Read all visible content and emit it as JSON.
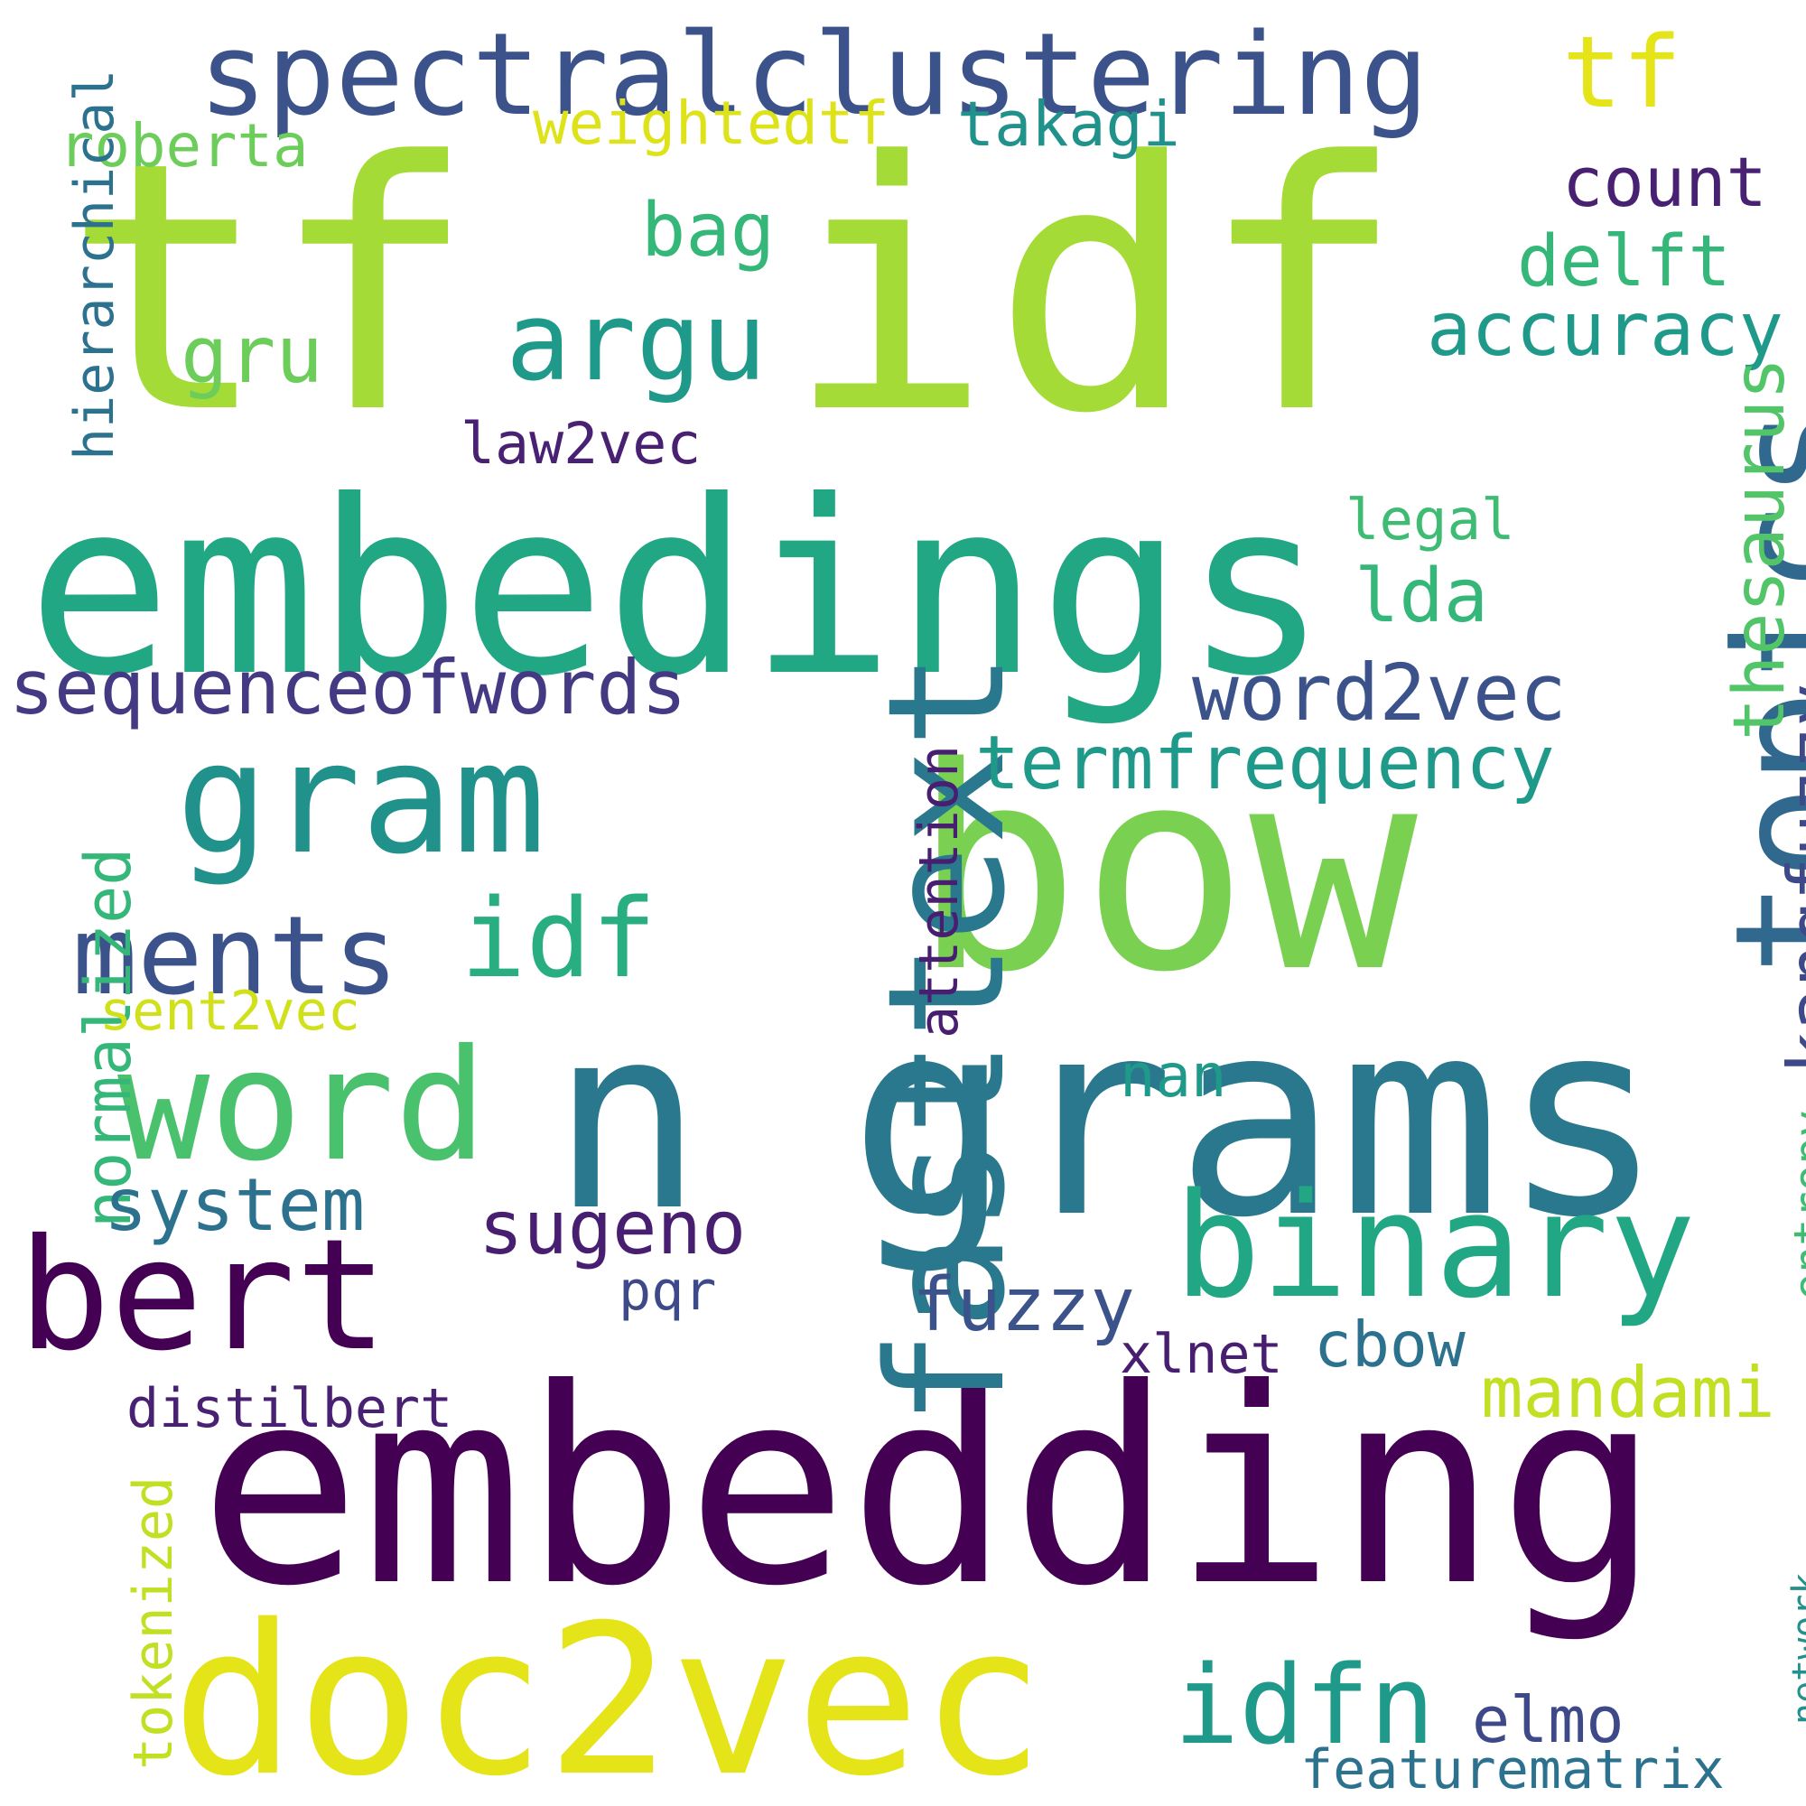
{
  "words": [
    {
      "text": "tf",
      "color": "#a5db36"
    },
    {
      "text": "idf",
      "color": "#a5db36"
    },
    {
      "text": "embedings",
      "color": "#22a785"
    },
    {
      "text": "bow",
      "color": "#7ad151"
    },
    {
      "text": "grams",
      "color": "#2a788e"
    },
    {
      "text": "n",
      "color": "#2a788e"
    },
    {
      "text": "embedding",
      "color": "#440154"
    },
    {
      "text": "doc2vec",
      "color": "#e5e419"
    },
    {
      "text": "gram",
      "color": "#21918c"
    },
    {
      "text": "bert",
      "color": "#440154"
    },
    {
      "text": "fasttext",
      "color": "#2a788e"
    },
    {
      "text": "topics",
      "color": "#31688e"
    },
    {
      "text": "binary",
      "color": "#22a785"
    },
    {
      "text": "word",
      "color": "#4ac16d"
    },
    {
      "text": "spectralclustering",
      "color": "#3b528b"
    },
    {
      "text": "tf",
      "color": "#e5e419"
    },
    {
      "text": "argu",
      "color": "#1f9a8a"
    },
    {
      "text": "ments",
      "color": "#3b528b"
    },
    {
      "text": "idf",
      "color": "#28ae80"
    },
    {
      "text": "idfn",
      "color": "#1f9a8a"
    },
    {
      "text": "takagi",
      "color": "#21918c"
    },
    {
      "text": "count",
      "color": "#482173"
    },
    {
      "text": "bag",
      "color": "#35b779"
    },
    {
      "text": "delft",
      "color": "#35b779"
    },
    {
      "text": "accuracy",
      "color": "#1f9a8a"
    },
    {
      "text": "gru",
      "color": "#6ccd5a"
    },
    {
      "text": "weightedtf",
      "color": "#dde318"
    },
    {
      "text": "roberta",
      "color": "#6ccd5a"
    },
    {
      "text": "law2vec",
      "color": "#482173"
    },
    {
      "text": "hierarchical",
      "color": "#2c728e"
    },
    {
      "text": "legal",
      "color": "#3fbc73"
    },
    {
      "text": "lda",
      "color": "#35b779"
    },
    {
      "text": "thesaurus",
      "color": "#52c569"
    },
    {
      "text": "sequenceofwords",
      "color": "#443983"
    },
    {
      "text": "word2vec",
      "color": "#3b528b"
    },
    {
      "text": "termfrequency",
      "color": "#1f9a8a"
    },
    {
      "text": "kangfuzzy",
      "color": "#3e4989"
    },
    {
      "text": "normalized",
      "color": "#35b779"
    },
    {
      "text": "attention",
      "color": "#481f70"
    },
    {
      "text": "sent2vec",
      "color": "#d0e11c"
    },
    {
      "text": "nan",
      "color": "#1f9a8a"
    },
    {
      "text": "system",
      "color": "#2c728e"
    },
    {
      "text": "sugeno",
      "color": "#481f70"
    },
    {
      "text": "entropy",
      "color": "#3fbc73"
    },
    {
      "text": "pqr",
      "color": "#3e4989"
    },
    {
      "text": "fuzzy",
      "color": "#3b528b"
    },
    {
      "text": "xlnet",
      "color": "#481f70"
    },
    {
      "text": "cbow",
      "color": "#2c728e"
    },
    {
      "text": "mandami",
      "color": "#c2df23"
    },
    {
      "text": "distilbert",
      "color": "#482173"
    },
    {
      "text": "tokenized",
      "color": "#c2df23"
    },
    {
      "text": "network",
      "color": "#21918c"
    },
    {
      "text": "elmo",
      "color": "#3e4989"
    },
    {
      "text": "featurematrix",
      "color": "#2c728e"
    }
  ]
}
